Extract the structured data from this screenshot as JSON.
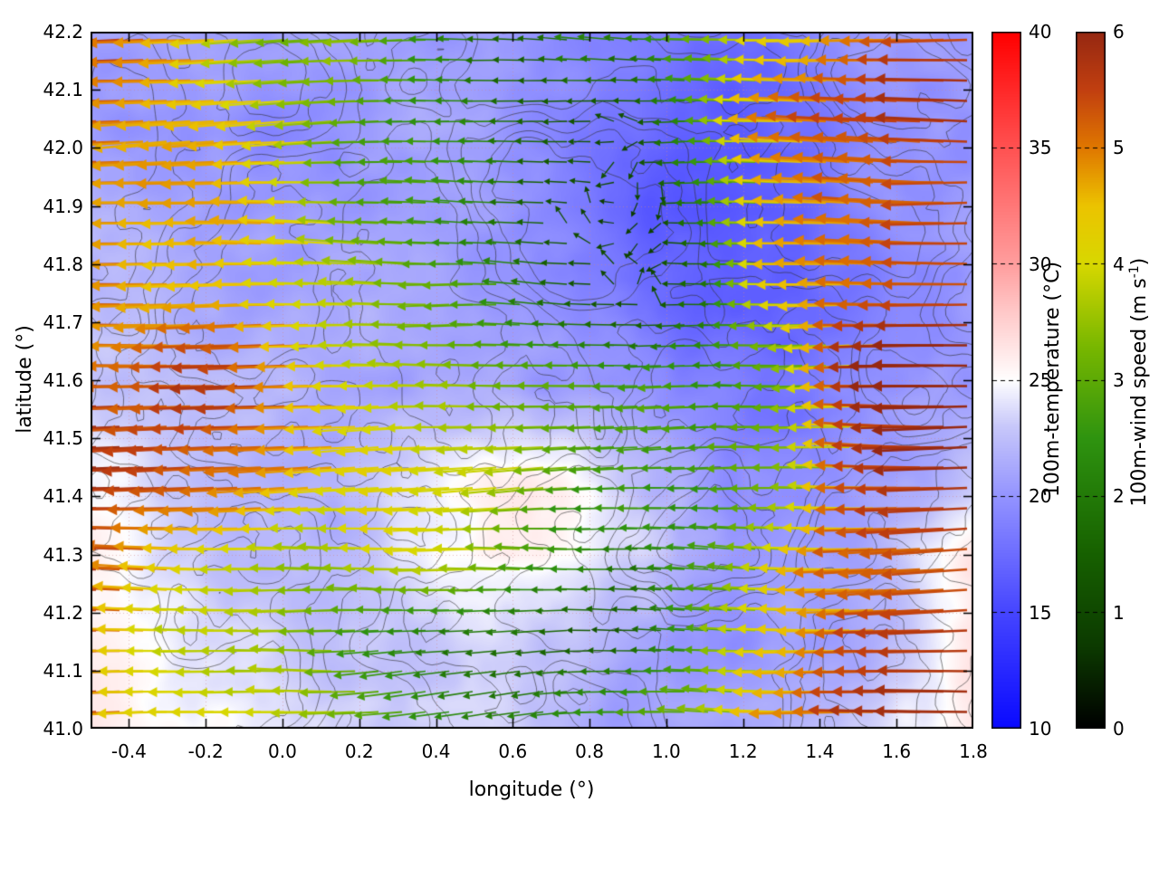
{
  "figure": {
    "xlabel": "longitude (°)",
    "ylabel": "latitude (°)",
    "x_tick_labels": [
      "-0.4",
      "-0.2",
      "0.0",
      "0.2",
      "0.4",
      "0.6",
      "0.8",
      "1.0",
      "1.2",
      "1.4",
      "1.6",
      "1.8"
    ],
    "y_tick_labels": [
      "41.0",
      "41.1",
      "41.2",
      "41.3",
      "41.4",
      "41.5",
      "41.6",
      "41.7",
      "41.8",
      "41.9",
      "42.0",
      "42.1",
      "42.2"
    ]
  },
  "colorbars": {
    "temperature": {
      "label": "100m-temperature (°C)",
      "ticks": [
        "10",
        "15",
        "20",
        "25",
        "30",
        "35",
        "40"
      ]
    },
    "wind": {
      "label_prefix": "100m-wind speed (m s",
      "label_sup": "-1",
      "label_suffix": ")",
      "ticks": [
        "0",
        "1",
        "2",
        "3",
        "4",
        "5",
        "6"
      ]
    }
  },
  "chart_data": {
    "type": "heatmap",
    "overlay": "quiver",
    "title": "",
    "xlabel": "longitude (°)",
    "ylabel": "latitude (°)",
    "xlim": [
      -0.5,
      1.8
    ],
    "ylim": [
      41.0,
      42.2
    ],
    "x_ticks": [
      -0.4,
      -0.2,
      0.0,
      0.2,
      0.4,
      0.6,
      0.8,
      1.0,
      1.2,
      1.4,
      1.6,
      1.8
    ],
    "y_ticks": [
      41.0,
      41.1,
      41.2,
      41.3,
      41.4,
      41.5,
      41.6,
      41.7,
      41.8,
      41.9,
      42.0,
      42.1,
      42.2
    ],
    "grid": "dotted",
    "contours": "thin dark-gray terrain contour lines overlaid across the map, densest in the centre and lower-centre",
    "temperature": {
      "label": "100m-temperature (°C)",
      "range": [
        10,
        40
      ],
      "colorbar_ticks": [
        10,
        15,
        20,
        25,
        30,
        35,
        40
      ],
      "colormap": [
        [
          10,
          "#0a0aff"
        ],
        [
          15,
          "#4646ff"
        ],
        [
          20,
          "#9494ff"
        ],
        [
          23,
          "#c8c8fa"
        ],
        [
          25,
          "#ffffff"
        ],
        [
          28,
          "#ffc8c8"
        ],
        [
          30,
          "#ff9e9e"
        ],
        [
          35,
          "#ff5252"
        ],
        [
          40,
          "#ff0000"
        ]
      ],
      "grid_lon": [
        -0.5,
        -0.29,
        -0.08,
        0.13,
        0.34,
        0.55,
        0.75,
        0.96,
        1.17,
        1.38,
        1.59,
        1.8
      ],
      "grid_lat_north_to_south": [
        42.2,
        42.05,
        41.9,
        41.75,
        41.6,
        41.45,
        41.3,
        41.15,
        41.0
      ],
      "values_north_to_south": [
        [
          21,
          21,
          20,
          20,
          20,
          20,
          19,
          18,
          18,
          19,
          20,
          20
        ],
        [
          21,
          21,
          20,
          20,
          21,
          20,
          19,
          18,
          17,
          18,
          20,
          20
        ],
        [
          22,
          21,
          21,
          21,
          21,
          20,
          19,
          17,
          17,
          18,
          20,
          20
        ],
        [
          22,
          22,
          21,
          21,
          21,
          20,
          20,
          18,
          17,
          18,
          19,
          20
        ],
        [
          23,
          22,
          22,
          21,
          21,
          21,
          20,
          19,
          18,
          18,
          19,
          20
        ],
        [
          24,
          23,
          22,
          22,
          23,
          25,
          25,
          22,
          19,
          19,
          20,
          22
        ],
        [
          26,
          24,
          23,
          22,
          24,
          26,
          25,
          23,
          20,
          20,
          22,
          26
        ],
        [
          27,
          25,
          23,
          22,
          23,
          24,
          23,
          21,
          20,
          21,
          23,
          27
        ],
        [
          27,
          26,
          24,
          23,
          23,
          23,
          22,
          21,
          21,
          22,
          24,
          26
        ]
      ]
    },
    "wind": {
      "label": "100m-wind speed (m s-1)",
      "range": [
        0,
        6
      ],
      "colorbar_ticks": [
        0,
        1,
        2,
        3,
        4,
        5,
        6
      ],
      "colormap": [
        [
          0,
          "#000000"
        ],
        [
          0.7,
          "#0c3a00"
        ],
        [
          1.5,
          "#176100"
        ],
        [
          2.5,
          "#2f9410"
        ],
        [
          3.3,
          "#7ab800"
        ],
        [
          4.0,
          "#d8d800"
        ],
        [
          4.5,
          "#ecc400"
        ],
        [
          5.0,
          "#e07800"
        ],
        [
          5.5,
          "#c24010"
        ],
        [
          6,
          "#962812"
        ]
      ],
      "direction": "arrows predominantly point westward (toward negative longitude); weak-wind areas in the north-centre and south-centre show short dark arrows with variable direction",
      "grid_lon": [
        -0.5,
        -0.29,
        -0.08,
        0.13,
        0.34,
        0.55,
        0.75,
        0.96,
        1.17,
        1.38,
        1.59,
        1.8
      ],
      "grid_lat_north_to_south": [
        42.2,
        42.05,
        41.9,
        41.75,
        41.6,
        41.45,
        41.3,
        41.15,
        41.0
      ],
      "speed_north_to_south": [
        [
          5.6,
          5.0,
          4.2,
          3.2,
          2.6,
          2.0,
          1.6,
          2.2,
          3.2,
          4.2,
          4.6,
          5.0
        ],
        [
          5.8,
          5.2,
          4.4,
          3.6,
          2.6,
          2.0,
          1.4,
          1.0,
          2.6,
          4.6,
          5.4,
          5.8
        ],
        [
          5.8,
          5.1,
          4.6,
          3.9,
          3.0,
          2.0,
          1.0,
          0.6,
          2.0,
          4.0,
          5.4,
          5.8
        ],
        [
          5.6,
          5.0,
          4.6,
          4.1,
          3.6,
          2.6,
          1.5,
          0.8,
          1.6,
          3.6,
          5.0,
          5.6
        ],
        [
          5.8,
          5.6,
          5.3,
          4.6,
          4.1,
          3.6,
          3.0,
          2.4,
          2.0,
          3.0,
          5.0,
          5.8
        ],
        [
          5.8,
          5.5,
          5.0,
          4.6,
          4.4,
          4.0,
          3.5,
          3.0,
          2.6,
          3.6,
          5.2,
          5.8
        ],
        [
          5.6,
          5.0,
          4.2,
          3.6,
          4.4,
          4.0,
          3.0,
          2.2,
          2.6,
          4.2,
          5.5,
          5.8
        ],
        [
          5.5,
          4.6,
          3.8,
          3.2,
          2.6,
          2.0,
          1.6,
          1.6,
          2.6,
          4.6,
          5.5,
          5.8
        ],
        [
          5.5,
          5.0,
          4.2,
          3.6,
          2.8,
          2.2,
          2.6,
          3.0,
          3.6,
          4.6,
          5.5,
          5.8
        ]
      ]
    }
  }
}
